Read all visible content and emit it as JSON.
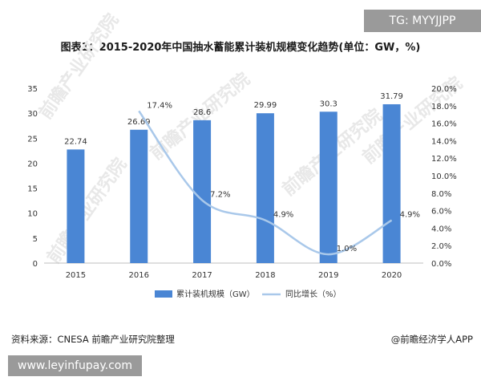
{
  "badge": "TG: MYYJJPP",
  "source": "资料来源：CNESA 前瞻产业研究院整理",
  "brand": "@前瞻经济学人APP",
  "url": "www.leyinfupay.com",
  "watermark": "前瞻产业研究院",
  "colors": {
    "bar": "#4a86d4",
    "line": "#a9c8ea",
    "axis": "#bfbfbf",
    "text": "#333333"
  },
  "chart_data": {
    "type": "bar",
    "title": "图表1：2015-2020年中国抽水蓄能累计装机规模变化趋势(单位：GW，%)",
    "categories": [
      "2015",
      "2016",
      "2017",
      "2018",
      "2019",
      "2020"
    ],
    "series": [
      {
        "name": "累计装机规模（GW）",
        "type": "bar",
        "axis": "left",
        "values": [
          22.74,
          26.69,
          28.6,
          29.99,
          30.3,
          31.79
        ],
        "labels": [
          "22.74",
          "26.69",
          "28.6",
          "29.99",
          "30.3",
          "31.79"
        ]
      },
      {
        "name": "同比增长（%）",
        "type": "line",
        "axis": "right",
        "x": [
          "2016",
          "2017",
          "2018",
          "2019",
          "2020"
        ],
        "values": [
          17.4,
          7.2,
          4.9,
          1.0,
          4.9
        ],
        "labels": [
          "17.4%",
          "7.2%",
          "4.9%",
          "1.0%",
          "4.9%"
        ]
      }
    ],
    "yleft": {
      "lim": [
        0,
        35
      ],
      "ticks": [
        "0",
        "5",
        "10",
        "15",
        "20",
        "25",
        "30",
        "35"
      ]
    },
    "yright": {
      "lim": [
        0,
        20
      ],
      "ticks": [
        "0.0%",
        "2.0%",
        "4.0%",
        "6.0%",
        "8.0%",
        "10.0%",
        "12.0%",
        "14.0%",
        "16.0%",
        "18.0%",
        "20.0%"
      ]
    },
    "grid": false,
    "legend": "bottom"
  }
}
